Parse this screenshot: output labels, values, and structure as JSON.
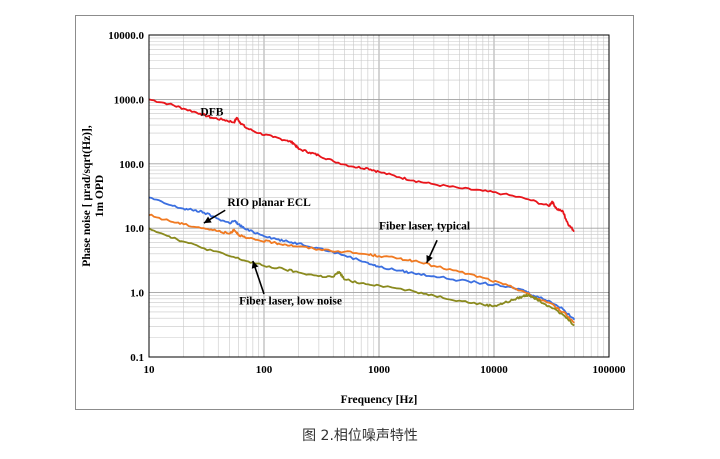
{
  "chart_data": {
    "type": "line",
    "title": "",
    "xlabel": "Frequency [Hz]",
    "ylabel_lines": [
      "Phase noise [ µrad/sqrt(Hz)],",
      "1m OPD"
    ],
    "xscale": "log",
    "yscale": "log",
    "xlim": [
      10,
      100000
    ],
    "ylim": [
      0.1,
      10000
    ],
    "grid": true,
    "x_tick_labels": [
      "10",
      "100",
      "1000",
      "10000",
      "100000"
    ],
    "y_tick_labels": [
      "0.1",
      "1.0",
      "10.0",
      "100.0",
      "1000.0",
      "10000.0"
    ],
    "series": [
      {
        "name": "DFB",
        "color": "#e8151b",
        "x": [
          10,
          15,
          20,
          28,
          35,
          45,
          55,
          58,
          62,
          70,
          90,
          120,
          160,
          180,
          200,
          250,
          300,
          400,
          600,
          800,
          1000,
          1500,
          2000,
          3000,
          5000,
          8000,
          12000,
          20000,
          30000,
          32000,
          35000,
          40000,
          42000,
          45000,
          50000
        ],
        "y": [
          1000,
          850,
          720,
          600,
          520,
          480,
          440,
          520,
          440,
          360,
          300,
          260,
          230,
          210,
          170,
          150,
          135,
          110,
          90,
          85,
          75,
          62,
          55,
          48,
          42,
          38,
          34,
          28,
          22,
          26,
          20,
          18,
          14,
          11,
          9
        ]
      },
      {
        "name": "RIO planar ECL",
        "color": "#3b6fe0",
        "x": [
          10,
          15,
          20,
          25,
          30,
          40,
          50,
          55,
          60,
          70,
          90,
          120,
          150,
          200,
          300,
          500,
          800,
          1000,
          1500,
          2000,
          3000,
          5000,
          8000,
          12000,
          18000,
          22000,
          30000,
          40000,
          50000
        ],
        "y": [
          30,
          23,
          20,
          19,
          17.5,
          14,
          12,
          13,
          11.5,
          9.5,
          8.2,
          7,
          6.3,
          5.8,
          4.9,
          3.8,
          2.9,
          2.5,
          2.2,
          2.0,
          1.8,
          1.55,
          1.4,
          1.25,
          1.1,
          0.9,
          0.75,
          0.55,
          0.38
        ]
      },
      {
        "name": "Fiber laser, typical",
        "color": "#f07a22",
        "x": [
          10,
          15,
          20,
          30,
          40,
          50,
          55,
          60,
          70,
          90,
          120,
          150,
          200,
          300,
          500,
          800,
          1000,
          1500,
          2000,
          3000,
          5000,
          8000,
          12000,
          18000,
          22000,
          30000,
          40000,
          50000
        ],
        "y": [
          16,
          13,
          11.5,
          10,
          9,
          8.2,
          9.5,
          8,
          7,
          6.5,
          6,
          5.6,
          5.2,
          4.7,
          4.3,
          3.9,
          3.7,
          3.4,
          3.1,
          2.6,
          2.1,
          1.7,
          1.35,
          1.05,
          0.85,
          0.7,
          0.5,
          0.34
        ]
      },
      {
        "name": "Fiber laser, low noise",
        "color": "#8a8a1e",
        "x": [
          10,
          15,
          20,
          30,
          50,
          70,
          100,
          150,
          200,
          300,
          400,
          450,
          500,
          700,
          1000,
          2000,
          3000,
          5000,
          8000,
          10000,
          12000,
          15000,
          18000,
          20000,
          22000,
          25000,
          30000,
          40000,
          50000
        ],
        "y": [
          10,
          7.5,
          6.2,
          4.9,
          3.7,
          3.1,
          2.6,
          2.3,
          2.05,
          1.8,
          1.75,
          2.1,
          1.6,
          1.4,
          1.3,
          1.05,
          0.9,
          0.75,
          0.65,
          0.62,
          0.68,
          0.78,
          0.88,
          0.92,
          0.85,
          0.75,
          0.62,
          0.45,
          0.31
        ]
      }
    ],
    "annotations": [
      {
        "text": "DFB"
      },
      {
        "text": "RIO planar ECL"
      },
      {
        "text": "Fiber laser, typical"
      },
      {
        "text": "Fiber laser, low noise"
      }
    ]
  },
  "caption": "图 2.相位噪声特性"
}
